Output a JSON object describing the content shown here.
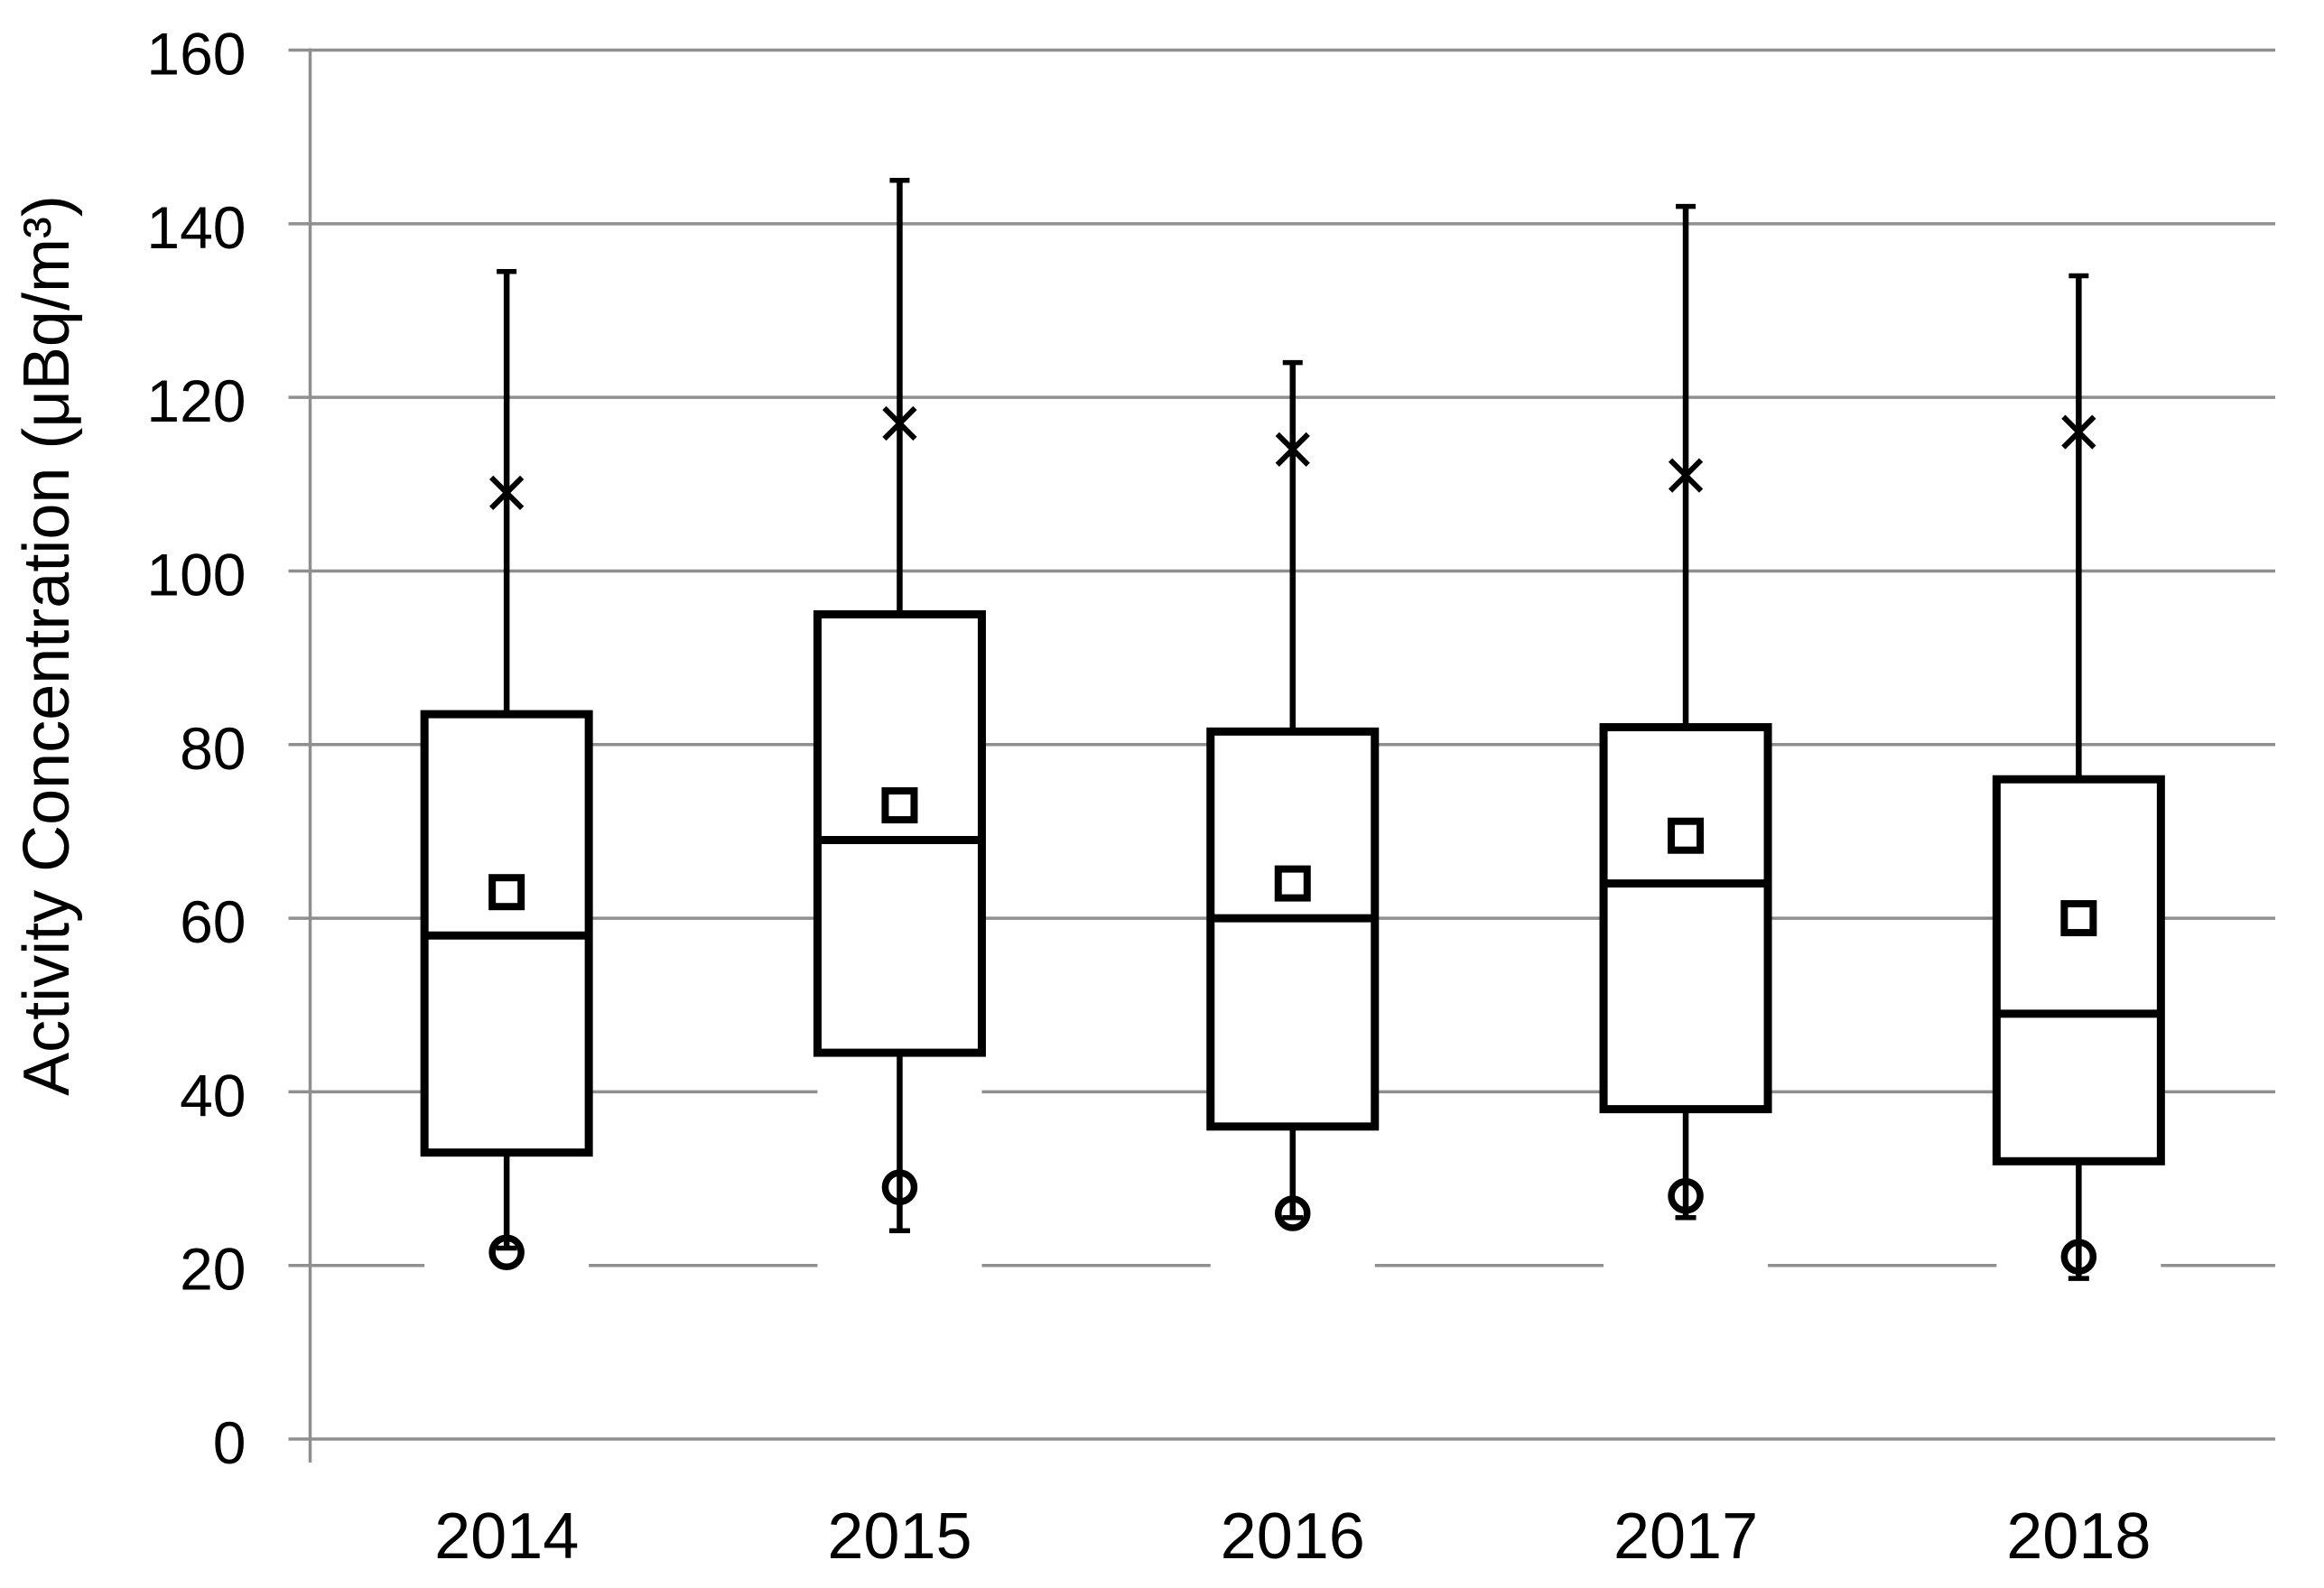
{
  "chart_data": {
    "type": "boxplot",
    "title": "",
    "xlabel": "",
    "ylabel": "Activity Concentration (μBq/m³)",
    "ylim": [
      0,
      160
    ],
    "yticks": [
      0,
      20,
      40,
      60,
      80,
      100,
      120,
      140,
      160
    ],
    "grid": "horizontal-major",
    "legend_position": "none",
    "categories": [
      "2014",
      "2015",
      "2016",
      "2017",
      "2018"
    ],
    "series": [
      {
        "category": "2014",
        "whisker_high": 134.5,
        "x_marker": 109,
        "q3": 83.5,
        "mean": 63,
        "median": 58,
        "q1": 33,
        "whisker_low": 22,
        "circle_marker": 21.5
      },
      {
        "category": "2015",
        "whisker_high": 145,
        "x_marker": 117,
        "q3": 95,
        "mean": 73,
        "median": 69,
        "q1": 44.5,
        "whisker_low": 24,
        "circle_marker": 29
      },
      {
        "category": "2016",
        "whisker_high": 124,
        "x_marker": 114,
        "q3": 81.5,
        "mean": 64,
        "median": 60,
        "q1": 36,
        "whisker_low": 25.5,
        "circle_marker": 26
      },
      {
        "category": "2017",
        "whisker_high": 142,
        "x_marker": 111,
        "q3": 82,
        "mean": 69.5,
        "median": 64,
        "q1": 38,
        "whisker_low": 25.5,
        "circle_marker": 28
      },
      {
        "category": "2018",
        "whisker_high": 134,
        "x_marker": 116,
        "q3": 76,
        "mean": 60,
        "median": 49,
        "q1": 32,
        "whisker_low": 18.5,
        "circle_marker": 21
      }
    ],
    "marker_legend": {
      "x_marker_meaning": "upper extreme marker (x)",
      "square_marker_meaning": "mean (open square)",
      "circle_marker_meaning": "lower extreme marker (open circle)"
    },
    "colors": {
      "box_stroke": "#000000",
      "box_fill": "#ffffff",
      "gridline": "#8f8f8f",
      "axis": "#8f8f8f",
      "background": "#ffffff",
      "text": "#000000"
    }
  }
}
